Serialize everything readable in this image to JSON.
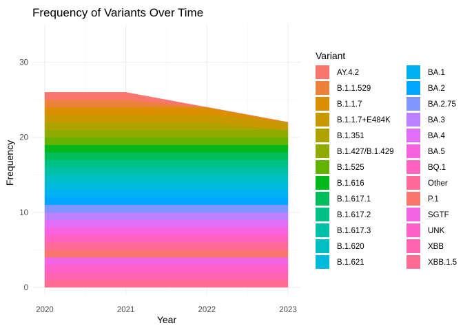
{
  "chart_data": {
    "type": "area",
    "title": "Frequency of Variants Over Time",
    "xlabel": "Year",
    "ylabel": "Frequency",
    "x": [
      "2020",
      "2021",
      "2022",
      "2023"
    ],
    "xlim": [
      2020,
      2023
    ],
    "ylim": [
      0,
      35
    ],
    "yticks": [
      0,
      10,
      20,
      30
    ],
    "grid": true,
    "legend_position": "right",
    "legend_title": "Variant",
    "series": [
      {
        "name": "AY.4.2",
        "color": "#F8766D",
        "values": [
          1,
          1,
          0,
          0
        ]
      },
      {
        "name": "B.1.1.529",
        "color": "#EC8239",
        "values": [
          1,
          1,
          0,
          0
        ]
      },
      {
        "name": "B.1.1.7",
        "color": "#DB8E00",
        "values": [
          1,
          1,
          1,
          0
        ]
      },
      {
        "name": "B.1.1.7+E484K",
        "color": "#C79800",
        "values": [
          1,
          1,
          1,
          1
        ]
      },
      {
        "name": "B.1.351",
        "color": "#AEA200",
        "values": [
          1,
          1,
          1,
          0
        ]
      },
      {
        "name": "B.1.427/B.1.429",
        "color": "#8FAA00",
        "values": [
          1,
          1,
          1,
          1
        ]
      },
      {
        "name": "B.1.525",
        "color": "#64B200",
        "values": [
          1,
          1,
          1,
          1
        ]
      },
      {
        "name": "B.1.616",
        "color": "#00B81B",
        "values": [
          1,
          1,
          1,
          1
        ]
      },
      {
        "name": "B.1.617.1",
        "color": "#00BD5C",
        "values": [
          1,
          1,
          1,
          1
        ]
      },
      {
        "name": "B.1.617.2",
        "color": "#00C085",
        "values": [
          1,
          1,
          1,
          1
        ]
      },
      {
        "name": "B.1.617.3",
        "color": "#00C1A7",
        "values": [
          1,
          1,
          1,
          1
        ]
      },
      {
        "name": "B.1.620",
        "color": "#00BFC4",
        "values": [
          1,
          1,
          1,
          1
        ]
      },
      {
        "name": "B.1.621",
        "color": "#00BADE",
        "values": [
          1,
          1,
          1,
          1
        ]
      },
      {
        "name": "BA.1",
        "color": "#00B2F3",
        "values": [
          1,
          1,
          1,
          1
        ]
      },
      {
        "name": "BA.2",
        "color": "#00A6FF",
        "values": [
          1,
          1,
          1,
          1
        ]
      },
      {
        "name": "BA.2.75",
        "color": "#7F96FF",
        "values": [
          1,
          1,
          1,
          1
        ]
      },
      {
        "name": "BA.3",
        "color": "#BC81FF",
        "values": [
          1,
          1,
          1,
          1
        ]
      },
      {
        "name": "BA.4",
        "color": "#E26EF7",
        "values": [
          1,
          1,
          1,
          1
        ]
      },
      {
        "name": "BA.5",
        "color": "#F863DF",
        "values": [
          1,
          1,
          1,
          1
        ]
      },
      {
        "name": "BQ.1",
        "color": "#FF62BF",
        "values": [
          1,
          1,
          1,
          1
        ]
      },
      {
        "name": "Other",
        "color": "#FF6A98",
        "values": [
          1,
          1,
          1,
          1
        ]
      },
      {
        "name": "P.1",
        "color": "#F8766D",
        "values": [
          1,
          1,
          1,
          1
        ]
      },
      {
        "name": "SGTF",
        "color": "#F365E6",
        "values": [
          1,
          1,
          1,
          1
        ]
      },
      {
        "name": "UNK",
        "color": "#FF61C9",
        "values": [
          1,
          1,
          1,
          1
        ]
      },
      {
        "name": "XBB",
        "color": "#FF64B0",
        "values": [
          1,
          1,
          1,
          1
        ]
      },
      {
        "name": "XBB.1.5",
        "color": "#FF6C91",
        "values": [
          1,
          1,
          1,
          1
        ]
      }
    ]
  }
}
